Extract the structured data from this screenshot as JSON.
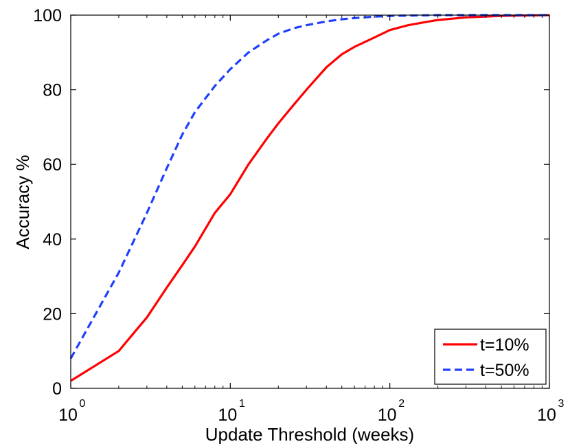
{
  "chart_data": {
    "type": "line",
    "title": "",
    "xlabel": "Update Threshold (weeks)",
    "ylabel": "Accuracy %",
    "xscale": "log",
    "xlim": [
      1,
      1000
    ],
    "ylim": [
      0,
      100
    ],
    "grid": false,
    "legend_position": "bottom-right",
    "x_ticks": [
      {
        "value": 1,
        "base": "10",
        "exp": "0"
      },
      {
        "value": 10,
        "base": "10",
        "exp": "1"
      },
      {
        "value": 100,
        "base": "10",
        "exp": "2"
      },
      {
        "value": 1000,
        "base": "10",
        "exp": "3"
      }
    ],
    "y_ticks": [
      {
        "value": 0,
        "label": "0"
      },
      {
        "value": 20,
        "label": "20"
      },
      {
        "value": 40,
        "label": "40"
      },
      {
        "value": 60,
        "label": "60"
      },
      {
        "value": 80,
        "label": "80"
      },
      {
        "value": 100,
        "label": "100"
      }
    ],
    "series": [
      {
        "name": "t=10%",
        "color": "#ff0000",
        "style": "solid",
        "x": [
          1,
          2,
          3,
          4,
          5,
          6,
          8,
          10,
          13,
          17,
          20,
          25,
          30,
          40,
          50,
          60,
          80,
          100,
          130,
          170,
          200,
          300,
          500,
          1000
        ],
        "y": [
          2,
          10,
          19,
          27,
          33,
          38,
          47,
          52,
          60,
          67,
          71,
          76,
          80,
          86,
          89.5,
          91.5,
          94,
          96,
          97.3,
          98.2,
          98.7,
          99.4,
          99.8,
          100
        ]
      },
      {
        "name": "t=50%",
        "color": "#1f3fff",
        "style": "dashed",
        "x": [
          1,
          2,
          3,
          4,
          5,
          6,
          8,
          10,
          13,
          17,
          20,
          25,
          30,
          40,
          50,
          60,
          80,
          100,
          200,
          500,
          1000
        ],
        "y": [
          8,
          31,
          47,
          59,
          68,
          74,
          81,
          85.5,
          90,
          93.3,
          95,
          96.5,
          97.3,
          98.3,
          98.9,
          99.2,
          99.6,
          99.8,
          100,
          100,
          100
        ]
      }
    ]
  }
}
